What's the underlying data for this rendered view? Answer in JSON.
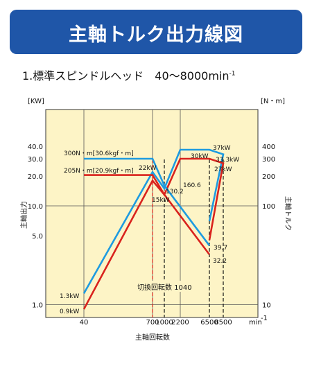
{
  "header": {
    "title": "主軸トルク出力線図"
  },
  "subtitle": {
    "text": "1.標準スピンドルヘッド　40〜8000min",
    "sup": "-1"
  },
  "chart_data": {
    "type": "line",
    "x_scale": "log",
    "y_scale": "log",
    "xlim": [
      40,
      12000
    ],
    "ylim_kw": [
      0.7,
      90
    ],
    "ylim_nm": [
      7,
      900
    ],
    "x_ticks": [
      "40",
      "700",
      "1000",
      "2200",
      "6500",
      "8500"
    ],
    "x_unit": "min",
    "x_unit_sup": "-1",
    "y_left_unit": "[KW]",
    "y_right_unit": "[N・m]",
    "y_left_ticks": [
      "1.0",
      "5.0",
      "10.0",
      "20.0",
      "30.0",
      "40.0"
    ],
    "y_right_ticks": [
      "10",
      "100",
      "200",
      "300",
      "400"
    ],
    "y_left_title": "主軸出力",
    "y_right_title": "主軸トルク",
    "x_title": "主軸回転数",
    "switch_label": "切換回転数 1040",
    "series": [
      {
        "color": "#1e9be0",
        "axis": "power",
        "points": [
          [
            40,
            1.3
          ],
          [
            700,
            22
          ],
          [
            1040,
            15
          ],
          [
            2200,
            37
          ],
          [
            6500,
            37
          ],
          [
            8500,
            33.3
          ],
          [
            6500,
            7.0
          ]
        ]
      },
      {
        "color": "#d9231d",
        "axis": "power",
        "points": [
          [
            40,
            0.9
          ],
          [
            700,
            18
          ],
          [
            1040,
            13
          ],
          [
            2200,
            30
          ],
          [
            6500,
            30
          ],
          [
            8500,
            27
          ],
          [
            6500,
            4.5
          ]
        ]
      },
      {
        "color": "#1e9be0",
        "axis": "torque",
        "points": [
          [
            40,
            300
          ],
          [
            700,
            300
          ],
          [
            1040,
            160.6
          ],
          [
            6500,
            39.7
          ]
        ]
      },
      {
        "color": "#d9231d",
        "axis": "torque",
        "points": [
          [
            40,
            205
          ],
          [
            700,
            205
          ],
          [
            1040,
            130.2
          ],
          [
            6500,
            32.2
          ]
        ]
      }
    ],
    "annotations": [
      "300N・m[30.6kgf・m]",
      "205N・m[20.9kgf・m]",
      "22kW",
      "15kW",
      "160.6",
      "130.2",
      "37kW",
      "30kW",
      "33.3kW",
      "27kW",
      "39.7",
      "32.2",
      "1.3kW",
      "0.9kW"
    ]
  }
}
